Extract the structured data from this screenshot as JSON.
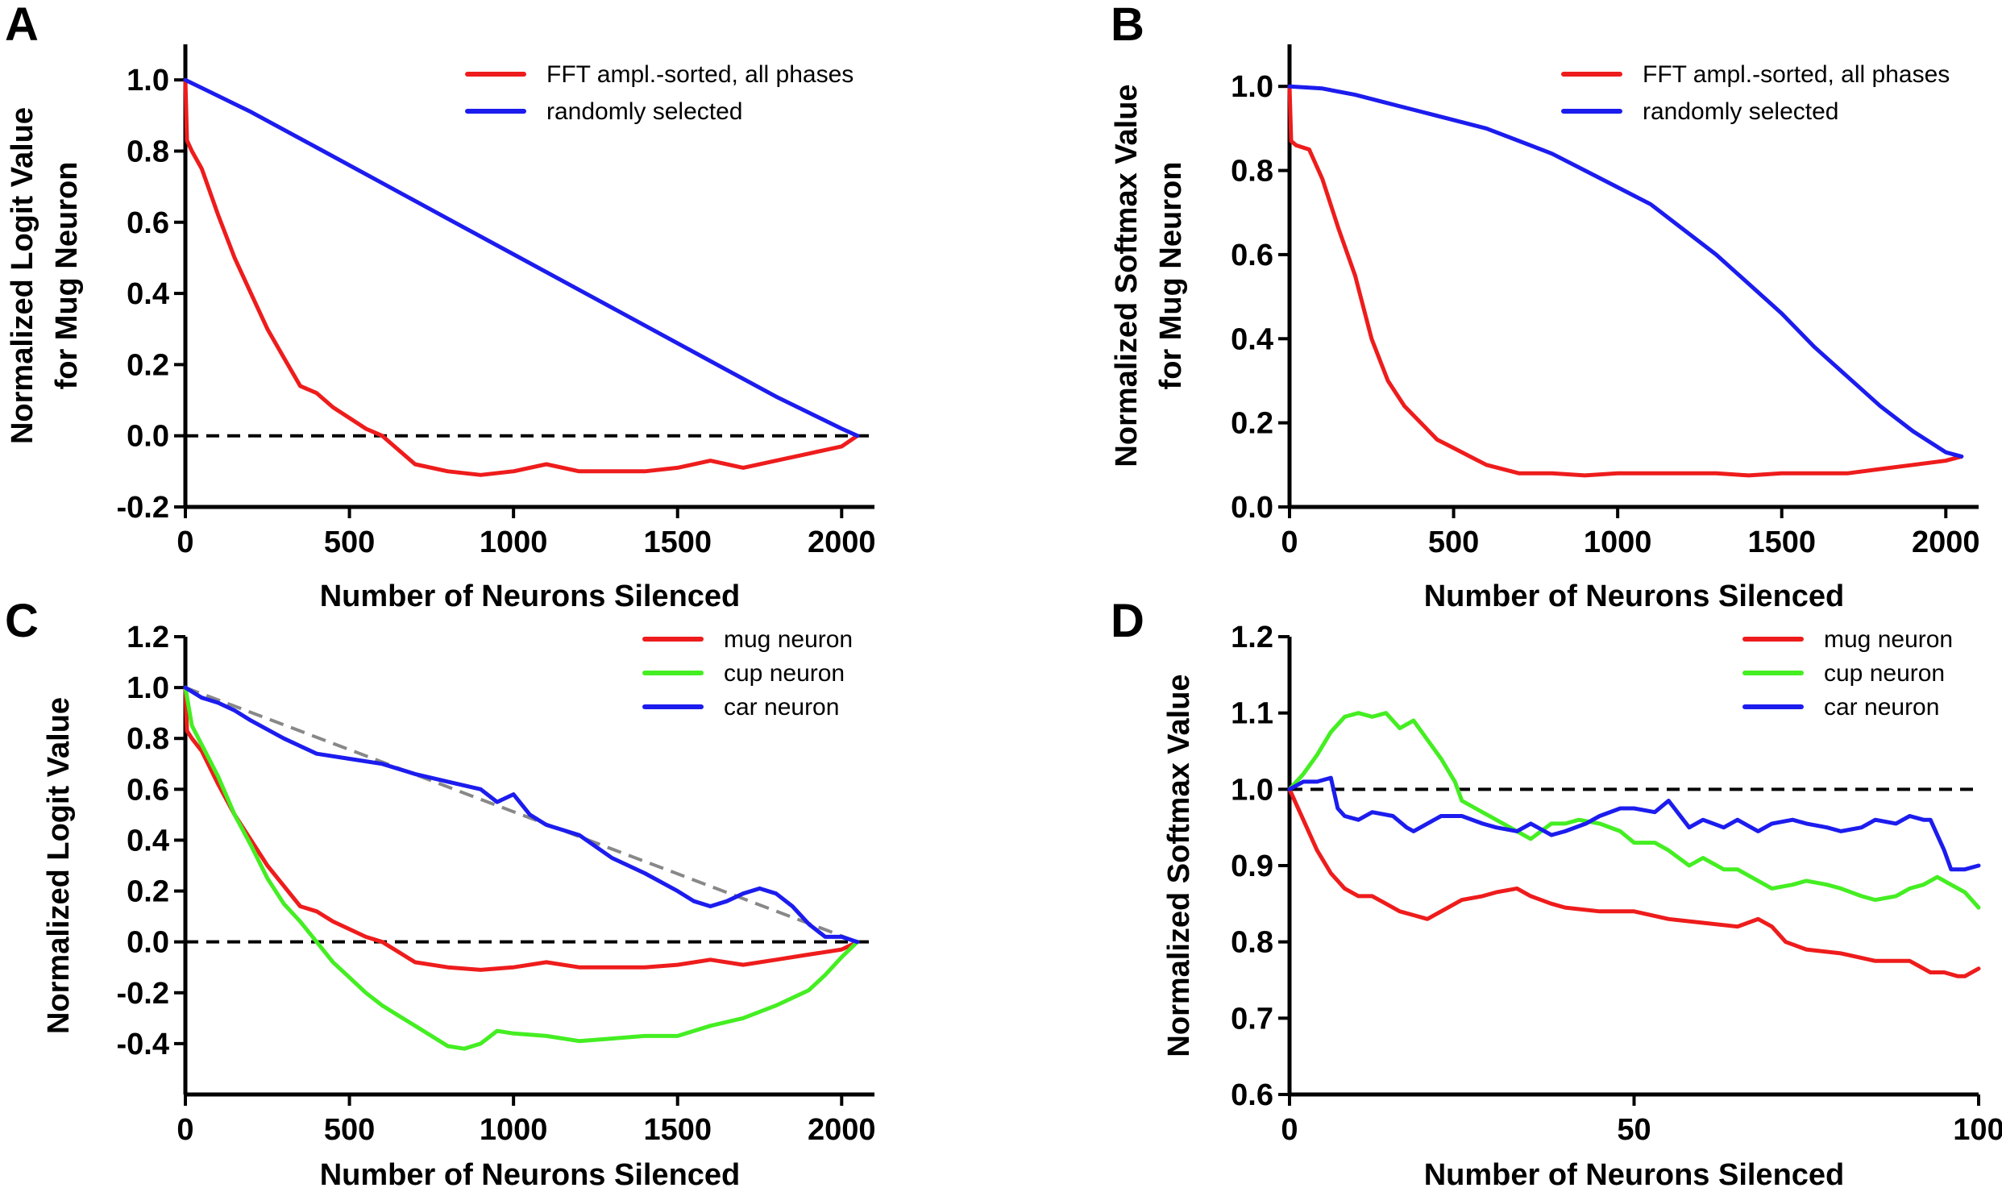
{
  "chart_data": [
    {
      "panel": "A",
      "type": "line",
      "xlabel": "Number of Neurons Silenced",
      "ylabel": [
        "Normalized Logit Value",
        "for Mug Neuron"
      ],
      "xlim": [
        0,
        2100
      ],
      "ylim": [
        -0.2,
        1.1
      ],
      "xticks": [
        0,
        500,
        1000,
        1500,
        2000
      ],
      "yticks": [
        -0.2,
        0.0,
        0.2,
        0.4,
        0.6,
        0.8,
        1.0
      ],
      "ytick_format": 1,
      "grid": false,
      "legend_position": "top-right",
      "reference_lines": [
        {
          "y": 0.0,
          "color": "#000000",
          "style": "dashed"
        }
      ],
      "series": [
        {
          "name": "FFT ampl.-sorted, all phases",
          "color": "#ee1c1c",
          "x": [
            0,
            5,
            20,
            50,
            100,
            150,
            200,
            250,
            300,
            350,
            400,
            450,
            500,
            550,
            600,
            650,
            700,
            800,
            900,
            1000,
            1100,
            1200,
            1300,
            1400,
            1500,
            1600,
            1700,
            1800,
            1900,
            2000,
            2048
          ],
          "y": [
            1.0,
            0.83,
            0.8,
            0.75,
            0.62,
            0.5,
            0.4,
            0.3,
            0.22,
            0.14,
            0.12,
            0.08,
            0.05,
            0.02,
            0.0,
            -0.04,
            -0.08,
            -0.1,
            -0.11,
            -0.1,
            -0.08,
            -0.1,
            -0.1,
            -0.1,
            -0.09,
            -0.07,
            -0.09,
            -0.07,
            -0.05,
            -0.03,
            0.0
          ]
        },
        {
          "name": "randomly selected",
          "color": "#1c1cee",
          "x": [
            0,
            200,
            400,
            600,
            800,
            1000,
            1200,
            1400,
            1600,
            1800,
            2000,
            2048
          ],
          "y": [
            1.0,
            0.91,
            0.81,
            0.71,
            0.61,
            0.51,
            0.41,
            0.31,
            0.21,
            0.11,
            0.02,
            0.0
          ]
        }
      ]
    },
    {
      "panel": "B",
      "type": "line",
      "xlabel": "Number of Neurons Silenced",
      "ylabel": [
        "Normalized Softmax Value",
        "for Mug Neuron"
      ],
      "xlim": [
        0,
        2100
      ],
      "ylim": [
        0.0,
        1.1
      ],
      "xticks": [
        0,
        500,
        1000,
        1500,
        2000
      ],
      "yticks": [
        0.0,
        0.2,
        0.4,
        0.6,
        0.8,
        1.0
      ],
      "ytick_format": 1,
      "grid": false,
      "legend_position": "top-right",
      "reference_lines": [],
      "series": [
        {
          "name": "FFT ampl.-sorted, all phases",
          "color": "#ee1c1c",
          "x": [
            0,
            5,
            20,
            60,
            100,
            150,
            200,
            250,
            300,
            350,
            400,
            450,
            500,
            550,
            600,
            700,
            800,
            900,
            1000,
            1100,
            1200,
            1300,
            1400,
            1500,
            1600,
            1700,
            1800,
            1900,
            2000,
            2048
          ],
          "y": [
            1.0,
            0.87,
            0.86,
            0.85,
            0.78,
            0.66,
            0.55,
            0.4,
            0.3,
            0.24,
            0.2,
            0.16,
            0.14,
            0.12,
            0.1,
            0.08,
            0.08,
            0.075,
            0.08,
            0.08,
            0.08,
            0.08,
            0.075,
            0.08,
            0.08,
            0.08,
            0.09,
            0.1,
            0.11,
            0.12
          ]
        },
        {
          "name": "randomly selected",
          "color": "#1c1cee",
          "x": [
            0,
            100,
            200,
            300,
            400,
            500,
            600,
            700,
            800,
            900,
            1000,
            1100,
            1200,
            1300,
            1400,
            1500,
            1600,
            1700,
            1800,
            1900,
            2000,
            2048
          ],
          "y": [
            1.0,
            0.995,
            0.98,
            0.96,
            0.94,
            0.92,
            0.9,
            0.87,
            0.84,
            0.8,
            0.76,
            0.72,
            0.66,
            0.6,
            0.53,
            0.46,
            0.38,
            0.31,
            0.24,
            0.18,
            0.13,
            0.12
          ]
        }
      ]
    },
    {
      "panel": "C",
      "type": "line",
      "xlabel": "Number of Neurons Silenced",
      "ylabel": [
        "Normalized Logit Value"
      ],
      "xlim": [
        0,
        2100
      ],
      "ylim": [
        -0.6,
        1.2
      ],
      "xticks": [
        0,
        500,
        1000,
        1500,
        2000
      ],
      "yticks": [
        -0.4,
        -0.2,
        0.0,
        0.2,
        0.4,
        0.6,
        0.8,
        1.0,
        1.2
      ],
      "ytick_format": 1,
      "grid": false,
      "legend_position": "top-right",
      "reference_lines": [
        {
          "y": 0.0,
          "color": "#000000",
          "style": "dashed"
        },
        {
          "x": [
            0,
            2048
          ],
          "y": [
            1.0,
            0.0
          ],
          "color": "#888888",
          "style": "dashed"
        }
      ],
      "series": [
        {
          "name": "mug neuron",
          "color": "#ee1c1c",
          "x": [
            0,
            5,
            20,
            50,
            100,
            150,
            200,
            250,
            300,
            350,
            400,
            450,
            500,
            550,
            600,
            650,
            700,
            800,
            900,
            1000,
            1100,
            1200,
            1300,
            1400,
            1500,
            1600,
            1700,
            1800,
            1900,
            2000,
            2048
          ],
          "y": [
            1.0,
            0.83,
            0.8,
            0.75,
            0.62,
            0.5,
            0.4,
            0.3,
            0.22,
            0.14,
            0.12,
            0.08,
            0.05,
            0.02,
            0.0,
            -0.04,
            -0.08,
            -0.1,
            -0.11,
            -0.1,
            -0.08,
            -0.1,
            -0.1,
            -0.1,
            -0.09,
            -0.07,
            -0.09,
            -0.07,
            -0.05,
            -0.03,
            0.0
          ]
        },
        {
          "name": "cup neuron",
          "color": "#44ee22",
          "x": [
            0,
            20,
            60,
            100,
            150,
            200,
            250,
            300,
            350,
            400,
            450,
            500,
            550,
            600,
            650,
            700,
            750,
            800,
            850,
            900,
            950,
            1000,
            1100,
            1200,
            1300,
            1400,
            1500,
            1600,
            1700,
            1800,
            1900,
            1950,
            2000,
            2048
          ],
          "y": [
            1.0,
            0.85,
            0.75,
            0.65,
            0.5,
            0.38,
            0.25,
            0.15,
            0.08,
            0.0,
            -0.08,
            -0.14,
            -0.2,
            -0.25,
            -0.29,
            -0.33,
            -0.37,
            -0.41,
            -0.42,
            -0.4,
            -0.35,
            -0.36,
            -0.37,
            -0.39,
            -0.38,
            -0.37,
            -0.37,
            -0.33,
            -0.3,
            -0.25,
            -0.19,
            -0.13,
            -0.06,
            0.0
          ]
        },
        {
          "name": "car neuron",
          "color": "#1c1cee",
          "x": [
            0,
            50,
            100,
            150,
            200,
            300,
            400,
            500,
            600,
            700,
            800,
            900,
            950,
            1000,
            1050,
            1100,
            1200,
            1300,
            1400,
            1500,
            1550,
            1600,
            1650,
            1700,
            1750,
            1800,
            1850,
            1900,
            1950,
            2000,
            2048
          ],
          "y": [
            1.0,
            0.96,
            0.94,
            0.91,
            0.87,
            0.8,
            0.74,
            0.72,
            0.7,
            0.66,
            0.63,
            0.6,
            0.55,
            0.58,
            0.5,
            0.46,
            0.42,
            0.33,
            0.27,
            0.2,
            0.16,
            0.14,
            0.16,
            0.19,
            0.21,
            0.19,
            0.14,
            0.07,
            0.02,
            0.02,
            0.0
          ]
        }
      ]
    },
    {
      "panel": "D",
      "type": "line",
      "xlabel": "Number of Neurons Silenced",
      "ylabel": [
        "Normalized Softmax Value"
      ],
      "xlim": [
        0,
        100
      ],
      "ylim": [
        0.6,
        1.2
      ],
      "xticks": [
        0,
        50,
        100
      ],
      "yticks": [
        0.6,
        0.7,
        0.8,
        0.9,
        1.0,
        1.1,
        1.2
      ],
      "ytick_format": 1,
      "grid": false,
      "legend_position": "top-right",
      "reference_lines": [
        {
          "y": 1.0,
          "color": "#000000",
          "style": "dashed"
        }
      ],
      "series": [
        {
          "name": "mug neuron",
          "color": "#ee1c1c",
          "x": [
            0,
            2,
            4,
            6,
            8,
            10,
            12,
            14,
            16,
            18,
            20,
            22,
            25,
            28,
            30,
            33,
            35,
            38,
            40,
            45,
            50,
            55,
            60,
            65,
            68,
            70,
            72,
            75,
            80,
            85,
            90,
            93,
            95,
            97,
            98,
            100
          ],
          "y": [
            1.0,
            0.96,
            0.92,
            0.89,
            0.87,
            0.86,
            0.86,
            0.85,
            0.84,
            0.835,
            0.83,
            0.84,
            0.855,
            0.86,
            0.865,
            0.87,
            0.86,
            0.85,
            0.845,
            0.84,
            0.84,
            0.83,
            0.825,
            0.82,
            0.83,
            0.82,
            0.8,
            0.79,
            0.785,
            0.775,
            0.775,
            0.76,
            0.76,
            0.755,
            0.755,
            0.765
          ]
        },
        {
          "name": "cup neuron",
          "color": "#44ee22",
          "x": [
            0,
            2,
            4,
            6,
            8,
            10,
            12,
            14,
            16,
            18,
            20,
            22,
            24,
            25,
            27,
            30,
            33,
            35,
            38,
            40,
            42,
            45,
            48,
            50,
            53,
            55,
            58,
            60,
            63,
            65,
            68,
            70,
            73,
            75,
            78,
            80,
            83,
            85,
            88,
            90,
            92,
            94,
            96,
            98,
            100
          ],
          "y": [
            1.0,
            1.02,
            1.045,
            1.075,
            1.095,
            1.1,
            1.095,
            1.1,
            1.08,
            1.09,
            1.065,
            1.04,
            1.01,
            0.985,
            0.975,
            0.96,
            0.945,
            0.935,
            0.955,
            0.955,
            0.96,
            0.955,
            0.945,
            0.93,
            0.93,
            0.92,
            0.9,
            0.91,
            0.895,
            0.895,
            0.88,
            0.87,
            0.875,
            0.88,
            0.875,
            0.87,
            0.86,
            0.855,
            0.86,
            0.87,
            0.875,
            0.885,
            0.875,
            0.865,
            0.845
          ]
        },
        {
          "name": "car neuron",
          "color": "#1c1cee",
          "x": [
            0,
            2,
            4,
            6,
            7,
            8,
            10,
            12,
            15,
            17,
            18,
            20,
            22,
            25,
            28,
            30,
            33,
            35,
            38,
            40,
            43,
            45,
            48,
            50,
            53,
            55,
            58,
            60,
            63,
            65,
            68,
            70,
            73,
            75,
            78,
            80,
            83,
            85,
            88,
            90,
            92,
            93,
            95,
            96,
            98,
            100
          ],
          "y": [
            1.0,
            1.01,
            1.01,
            1.015,
            0.975,
            0.965,
            0.96,
            0.97,
            0.965,
            0.95,
            0.945,
            0.955,
            0.965,
            0.965,
            0.955,
            0.95,
            0.945,
            0.955,
            0.94,
            0.945,
            0.955,
            0.965,
            0.975,
            0.975,
            0.97,
            0.985,
            0.95,
            0.96,
            0.95,
            0.96,
            0.945,
            0.955,
            0.96,
            0.955,
            0.95,
            0.945,
            0.95,
            0.96,
            0.955,
            0.965,
            0.96,
            0.96,
            0.92,
            0.895,
            0.895,
            0.9
          ]
        }
      ]
    }
  ]
}
